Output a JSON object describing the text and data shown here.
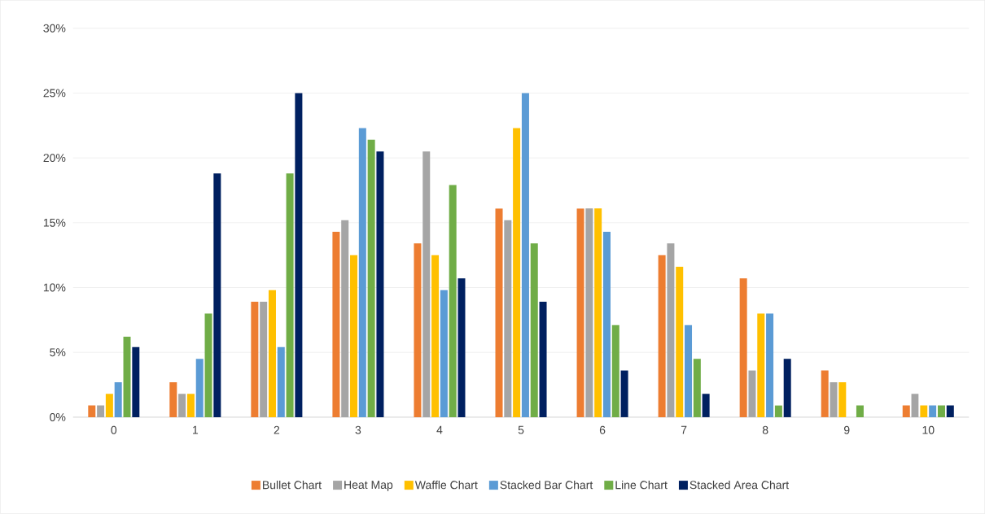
{
  "chart_data": {
    "type": "bar",
    "categories": [
      "0",
      "1",
      "2",
      "3",
      "4",
      "5",
      "6",
      "7",
      "8",
      "9",
      "10"
    ],
    "series": [
      {
        "name": "Bullet Chart",
        "color": "#ed7d31",
        "values": [
          0.9,
          2.7,
          8.9,
          14.3,
          13.4,
          16.1,
          16.1,
          12.5,
          10.7,
          3.6,
          0.9
        ]
      },
      {
        "name": "Heat Map",
        "color": "#a5a5a5",
        "values": [
          0.9,
          1.8,
          8.9,
          15.2,
          20.5,
          15.2,
          16.1,
          13.4,
          3.6,
          2.7,
          1.8
        ]
      },
      {
        "name": "Waffle Chart",
        "color": "#ffc000",
        "values": [
          1.8,
          1.8,
          9.8,
          12.5,
          12.5,
          22.3,
          16.1,
          11.6,
          8.0,
          2.7,
          0.9
        ]
      },
      {
        "name": "Stacked Bar Chart",
        "color": "#5b9bd5",
        "values": [
          2.7,
          4.5,
          5.4,
          22.3,
          9.8,
          25.0,
          14.3,
          7.1,
          8.0,
          0,
          0.9
        ]
      },
      {
        "name": "Line Chart",
        "color": "#70ad47",
        "values": [
          6.2,
          8.0,
          18.8,
          21.4,
          17.9,
          13.4,
          7.1,
          4.5,
          0.9,
          0.9,
          0.9
        ]
      },
      {
        "name": "Stacked Area Chart",
        "color": "#002060",
        "values": [
          5.4,
          18.8,
          25.0,
          20.5,
          10.7,
          8.9,
          3.6,
          1.8,
          4.5,
          0,
          0.9
        ]
      }
    ],
    "ylim": [
      0,
      30
    ],
    "yticks": [
      {
        "value": 0,
        "label": "0%"
      },
      {
        "value": 5,
        "label": "5%"
      },
      {
        "value": 10,
        "label": "10%"
      },
      {
        "value": 15,
        "label": "15%"
      },
      {
        "value": 20,
        "label": "20%"
      },
      {
        "value": 25,
        "label": "25%"
      },
      {
        "value": 30,
        "label": "30%"
      }
    ],
    "grid": "y",
    "legend": "bottom"
  }
}
